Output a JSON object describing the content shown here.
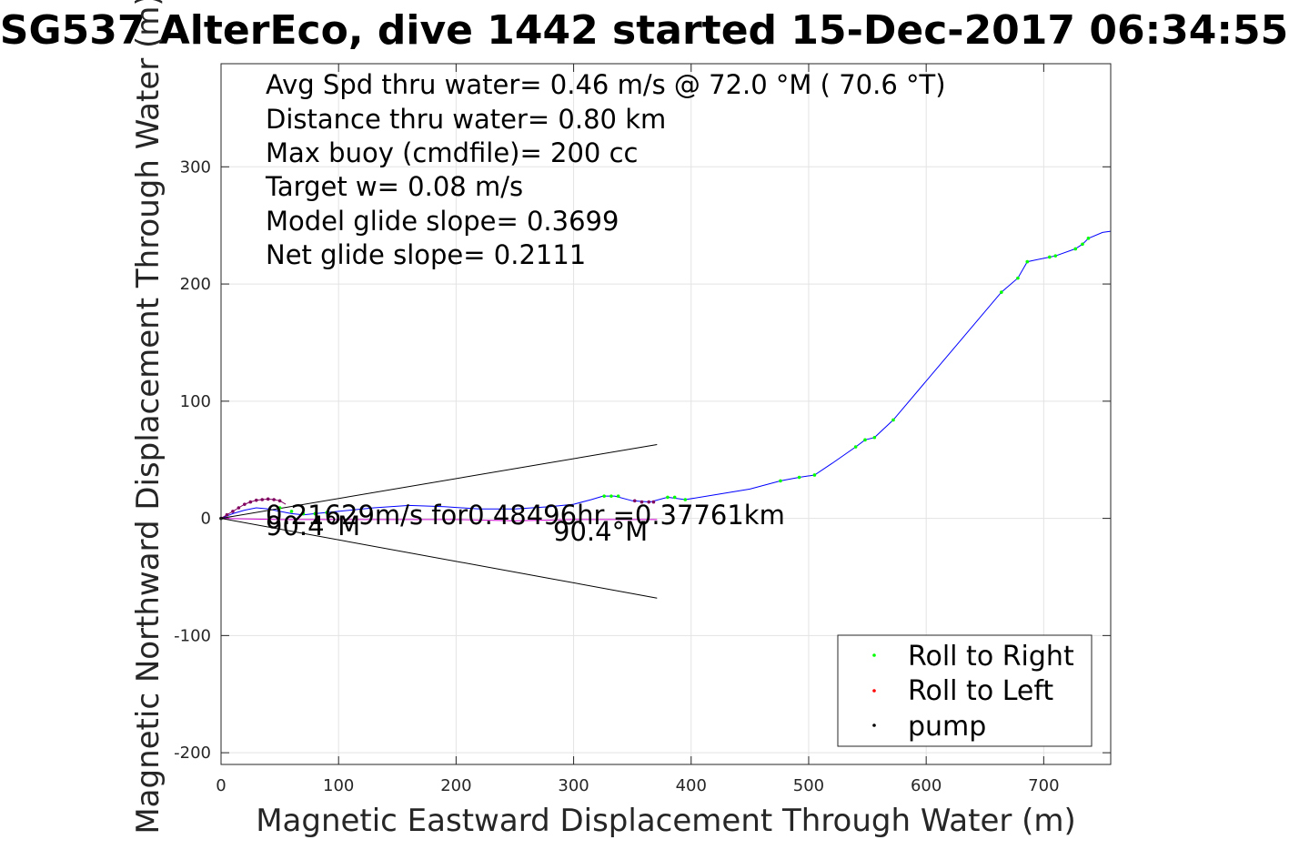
{
  "chart_data": {
    "type": "line",
    "title": "SG537 AlterEco, dive 1442 started 15-Dec-2017 06:34:55",
    "xlabel": "Magnetic Eastward Displacement Through Water (m)",
    "ylabel": "Magnetic Northward Displacement Through Water (m)",
    "xlim": [
      0,
      757
    ],
    "ylim": [
      -210,
      388
    ],
    "xticks": [
      0,
      100,
      200,
      300,
      400,
      500,
      600,
      700
    ],
    "yticks": [
      -200,
      -100,
      0,
      100,
      200,
      300
    ],
    "grid": true,
    "legend_position": "bottom-right",
    "legend": [
      {
        "label": "Roll to Right",
        "color": "#00ff00"
      },
      {
        "label": "Roll to Left",
        "color": "#ff0000"
      },
      {
        "label": "pump",
        "color": "#000000"
      }
    ],
    "annotations": [
      "Avg Spd thru water=  0.46 m/s @  72.0 °M ( 70.6 °T)",
      "Distance thru water=  0.80 km",
      "Max buoy (cmdfile)= 200 cc",
      "Target w= 0.08 m/s",
      "Model glide slope= 0.3699",
      "Net glide slope= 0.2111"
    ],
    "current_label": "0.21629m/s for0.48496hr =0.37761km",
    "heading_labels": [
      "90.4°M",
      "90.4°M"
    ],
    "series": [
      {
        "name": "track",
        "color": "#0000ff",
        "points": [
          [
            0,
            0
          ],
          [
            10,
            4
          ],
          [
            20,
            7
          ],
          [
            30,
            9
          ],
          [
            40,
            8
          ],
          [
            50,
            6
          ],
          [
            60,
            4
          ],
          [
            70,
            3
          ],
          [
            80,
            4
          ],
          [
            100,
            6
          ],
          [
            130,
            9
          ],
          [
            160,
            11
          ],
          [
            190,
            10
          ],
          [
            220,
            8
          ],
          [
            250,
            8
          ],
          [
            280,
            10
          ],
          [
            300,
            12
          ],
          [
            315,
            16
          ],
          [
            325,
            19
          ],
          [
            335,
            19
          ],
          [
            350,
            15
          ],
          [
            365,
            14
          ],
          [
            380,
            18
          ],
          [
            395,
            16
          ],
          [
            420,
            20
          ],
          [
            450,
            25
          ],
          [
            476,
            32
          ],
          [
            492,
            35
          ],
          [
            505,
            37
          ],
          [
            520,
            47
          ],
          [
            540,
            61
          ],
          [
            548,
            67
          ],
          [
            556,
            69
          ],
          [
            572,
            84
          ],
          [
            664,
            193
          ],
          [
            678,
            205
          ],
          [
            686,
            219
          ],
          [
            705,
            223
          ],
          [
            710,
            224
          ],
          [
            727,
            230
          ],
          [
            733,
            234
          ],
          [
            738,
            239
          ],
          [
            750,
            244
          ],
          [
            757,
            245
          ]
        ]
      },
      {
        "name": "current",
        "color": "#cc00cc",
        "points": [
          [
            0,
            0
          ],
          [
            50,
            -1
          ],
          [
            100,
            -1
          ],
          [
            150,
            -1
          ],
          [
            200,
            -1
          ],
          [
            250,
            -2
          ],
          [
            300,
            -1
          ],
          [
            350,
            -1
          ],
          [
            371,
            -1
          ]
        ]
      },
      {
        "name": "roll-left-arc",
        "color": "#800060",
        "points": [
          [
            0,
            0
          ],
          [
            5,
            3
          ],
          [
            10,
            6
          ],
          [
            15,
            9
          ],
          [
            20,
            12
          ],
          [
            25,
            14
          ],
          [
            30,
            15.5
          ],
          [
            35,
            16
          ],
          [
            40,
            16.5
          ],
          [
            45,
            16
          ],
          [
            50,
            15
          ],
          [
            55,
            12
          ]
        ]
      },
      {
        "name": "cone-upper",
        "color": "#000000",
        "points": [
          [
            0,
            0
          ],
          [
            371,
            63
          ]
        ]
      },
      {
        "name": "cone-lower",
        "color": "#000000",
        "points": [
          [
            0,
            0
          ],
          [
            371,
            -68
          ]
        ]
      }
    ],
    "roll_right_points": [
      [
        50,
        9
      ],
      [
        60,
        6
      ],
      [
        70,
        4
      ],
      [
        80,
        4
      ],
      [
        90,
        5
      ],
      [
        326,
        19
      ],
      [
        332,
        19
      ],
      [
        338,
        19
      ],
      [
        380,
        18
      ],
      [
        386,
        18
      ],
      [
        395,
        16
      ],
      [
        476,
        32
      ],
      [
        492,
        35
      ],
      [
        505,
        37
      ],
      [
        540,
        61
      ],
      [
        548,
        67
      ],
      [
        556,
        69
      ],
      [
        572,
        84
      ],
      [
        664,
        193
      ],
      [
        678,
        205
      ],
      [
        686,
        219
      ],
      [
        705,
        223
      ],
      [
        710,
        224
      ],
      [
        727,
        230
      ],
      [
        733,
        234
      ],
      [
        738,
        239
      ]
    ],
    "roll_left_points": [
      [
        5,
        3
      ],
      [
        10,
        6
      ],
      [
        15,
        9
      ],
      [
        20,
        12
      ],
      [
        25,
        14
      ],
      [
        30,
        15.5
      ],
      [
        35,
        16
      ],
      [
        40,
        16.5
      ],
      [
        45,
        16
      ],
      [
        50,
        15
      ],
      [
        352,
        15
      ],
      [
        358,
        14
      ],
      [
        364,
        14
      ],
      [
        368,
        14
      ]
    ],
    "pump_points": [
      [
        0,
        0
      ]
    ]
  }
}
